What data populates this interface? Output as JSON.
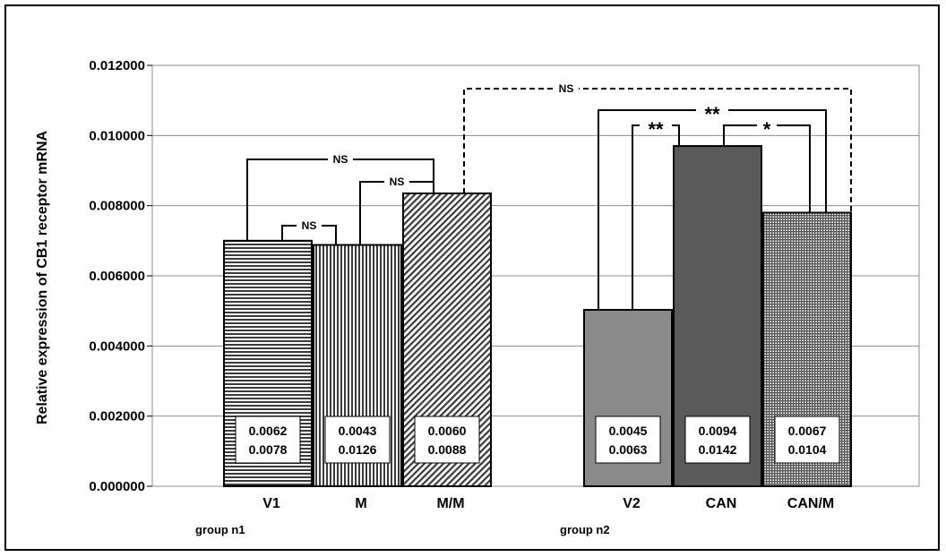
{
  "chart_data": {
    "type": "bar",
    "ylabel": "Relative expression of CB1 receptor mRNA",
    "ylim": [
      0,
      0.012
    ],
    "yticks": [
      0,
      0.002,
      0.004,
      0.006,
      0.008,
      0.01,
      0.012
    ],
    "ytick_labels": [
      "0.000000",
      "0.002000",
      "0.004000",
      "0.006000",
      "0.008000",
      "0.010000",
      "0.012000"
    ],
    "grid": true,
    "groups": [
      {
        "label": "group n1",
        "categories": [
          "V1",
          "M",
          "M/M"
        ]
      },
      {
        "label": "group n2",
        "categories": [
          "V2",
          "CAN",
          "CAN/M"
        ]
      }
    ],
    "categories": [
      "V1",
      "M",
      "M/M",
      "V2",
      "CAN",
      "CAN/M"
    ],
    "values": [
      0.007,
      0.00688,
      0.00835,
      0.00503,
      0.0097,
      0.0078
    ],
    "fills": [
      "hlines",
      "vlines",
      "diag",
      "#8a8a8a",
      "#5a5a5a",
      "grid"
    ],
    "box_labels": [
      [
        "0.0062",
        "0.0078"
      ],
      [
        "0.0043",
        "0.0126"
      ],
      [
        "0.0060",
        "0.0088"
      ],
      [
        "0.0045",
        "0.0063"
      ],
      [
        "0.0094",
        "0.0142"
      ],
      [
        "0.0067",
        "0.0104"
      ]
    ],
    "significance": [
      {
        "from": "V1",
        "to": "M",
        "label": "NS"
      },
      {
        "from": "M",
        "to": "M/M",
        "label": "NS"
      },
      {
        "from": "V1",
        "to": "M/M",
        "label": "NS"
      },
      {
        "from": "V2",
        "to": "CAN",
        "label": "**"
      },
      {
        "from": "CAN",
        "to": "CAN/M",
        "label": "*"
      },
      {
        "from": "V2",
        "to": "CAN/M",
        "label": "**"
      },
      {
        "from": "M/M",
        "to": "CAN/M",
        "label": "NS",
        "dashed": true
      }
    ]
  }
}
